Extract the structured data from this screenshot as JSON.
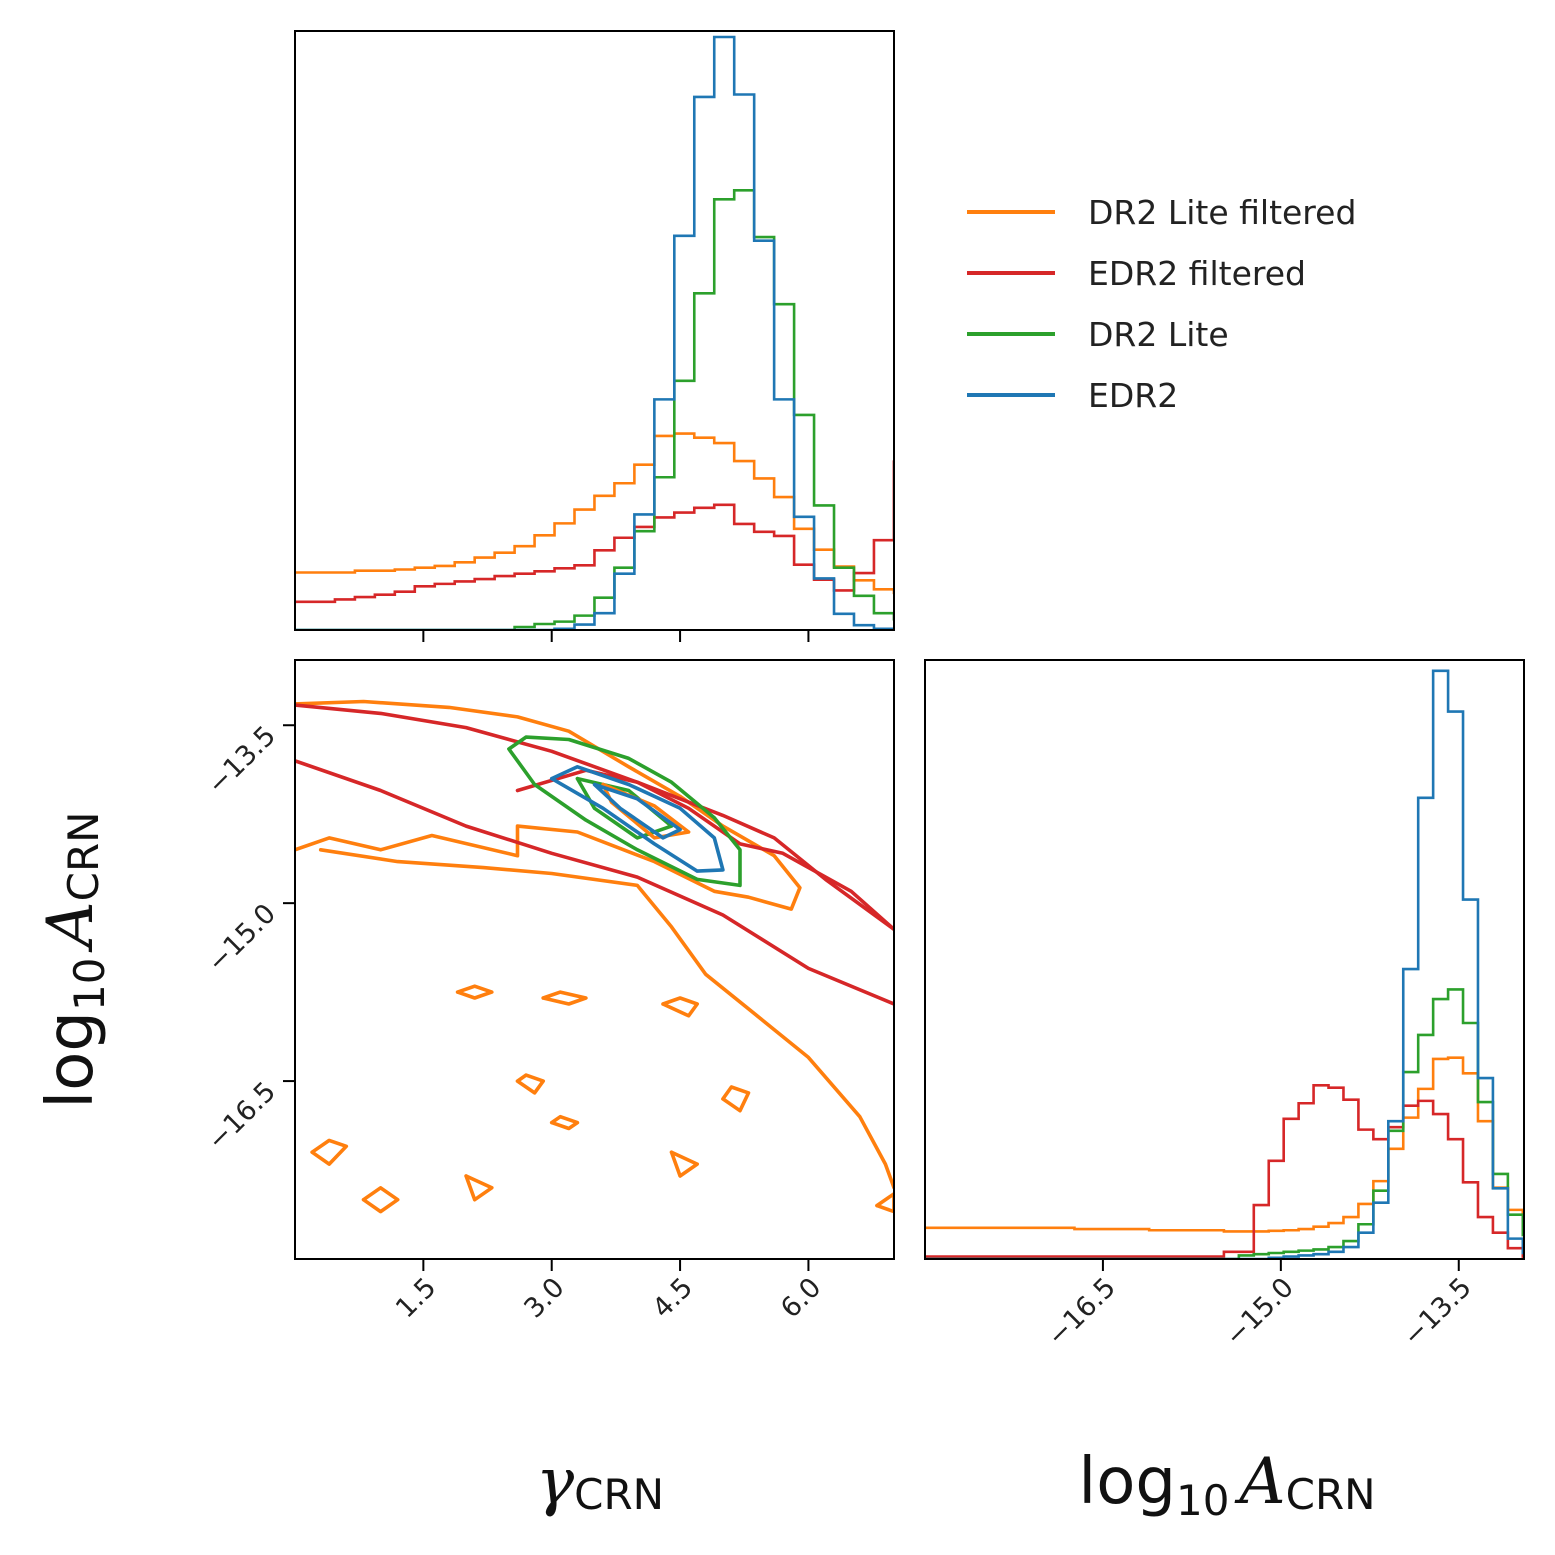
{
  "chart_data": {
    "type": "corner",
    "series": [
      {
        "name": "DR2 Lite filtered",
        "color": "#ff7f0e"
      },
      {
        "name": "EDR2 filtered",
        "color": "#d62728"
      },
      {
        "name": "DR2 Lite",
        "color": "#2ca02c"
      },
      {
        "name": "EDR2",
        "color": "#1f77b4"
      }
    ],
    "legend_position": "top-right",
    "grid": false,
    "gamma_axis": {
      "label_main": "γ",
      "label_sub": "CRN",
      "range": [
        0,
        7
      ],
      "ticks": [
        1.5,
        3.0,
        4.5,
        6.0
      ],
      "tick_labels": [
        "1.5",
        "3.0",
        "4.5",
        "6.0"
      ]
    },
    "logA_axis": {
      "label_main": "log",
      "label_base": "10",
      "label_var": "A",
      "label_sub": "CRN",
      "range": [
        -18.0,
        -12.95
      ],
      "ticks": [
        -16.5,
        -15.0,
        -13.5
      ],
      "tick_labels": [
        "−16.5",
        "−15.0",
        "−13.5"
      ]
    },
    "hist_gamma": {
      "bin_edges_start": 0.0,
      "bin_width": 0.2333,
      "heights": {
        "DR2 Lite filtered": [
          0.096,
          0.096,
          0.096,
          0.099,
          0.099,
          0.101,
          0.104,
          0.107,
          0.113,
          0.121,
          0.129,
          0.14,
          0.158,
          0.178,
          0.201,
          0.224,
          0.245,
          0.276,
          0.324,
          0.328,
          0.321,
          0.312,
          0.282,
          0.253,
          0.222,
          0.169,
          0.134,
          0.106,
          0.083,
          0.068,
          0.062,
          0.058,
          0.055,
          0.05,
          0.046,
          0.043,
          0.037,
          0.035,
          0.032,
          0.03
        ],
        "EDR2 filtered": [
          0.047,
          0.047,
          0.051,
          0.055,
          0.059,
          0.064,
          0.073,
          0.077,
          0.081,
          0.085,
          0.09,
          0.094,
          0.098,
          0.103,
          0.108,
          0.133,
          0.154,
          0.172,
          0.188,
          0.196,
          0.204,
          0.209,
          0.177,
          0.164,
          0.157,
          0.109,
          0.084,
          0.066,
          0.095,
          0.15,
          0.281,
          0.336,
          0.353,
          0.326,
          0.295,
          0.251,
          0.211,
          0.169,
          0.125,
          0.125
        ],
        "DR2 Lite": [
          0.0,
          0.0,
          0.0,
          0.0,
          0.0,
          0.0,
          0.0,
          0.0,
          0.0,
          0.0,
          0.0,
          0.005,
          0.01,
          0.014,
          0.024,
          0.054,
          0.104,
          0.165,
          0.255,
          0.416,
          0.562,
          0.719,
          0.734,
          0.656,
          0.544,
          0.359,
          0.208,
          0.104,
          0.057,
          0.028,
          0.018,
          0.01,
          0.005,
          0.0,
          0.0,
          0.0,
          0.0,
          0.0,
          0.0,
          0.0
        ],
        "EDR2": [
          0.0,
          0.0,
          0.0,
          0.0,
          0.0,
          0.0,
          0.0,
          0.0,
          0.0,
          0.0,
          0.0,
          0.0,
          0.0,
          0.002,
          0.009,
          0.028,
          0.094,
          0.193,
          0.385,
          0.658,
          0.89,
          0.99,
          0.894,
          0.65,
          0.385,
          0.189,
          0.086,
          0.027,
          0.008,
          0.002,
          0.0,
          0.0,
          0.0,
          0.0,
          0.0,
          0.0,
          0.0,
          0.0,
          0.0,
          0.0
        ]
      }
    },
    "hist_logA": {
      "bin_edges_start": -18.0,
      "bin_width": 0.126,
      "heights": {
        "DR2 Lite filtered": [
          0.052,
          0.052,
          0.052,
          0.052,
          0.052,
          0.052,
          0.052,
          0.052,
          0.052,
          0.052,
          0.05,
          0.05,
          0.05,
          0.05,
          0.05,
          0.048,
          0.048,
          0.048,
          0.048,
          0.048,
          0.046,
          0.046,
          0.046,
          0.047,
          0.048,
          0.05,
          0.054,
          0.06,
          0.07,
          0.092,
          0.13,
          0.184,
          0.236,
          0.284,
          0.334,
          0.336,
          0.31,
          0.23,
          0.119,
          0.082,
          0.05,
          0.026,
          0.004,
          0.002
        ],
        "EDR2 filtered": [
          0.004,
          0.004,
          0.004,
          0.004,
          0.004,
          0.004,
          0.004,
          0.004,
          0.004,
          0.004,
          0.004,
          0.004,
          0.004,
          0.004,
          0.004,
          0.004,
          0.004,
          0.004,
          0.004,
          0.004,
          0.012,
          0.012,
          0.09,
          0.164,
          0.234,
          0.26,
          0.29,
          0.286,
          0.266,
          0.216,
          0.2,
          0.22,
          0.256,
          0.264,
          0.242,
          0.2,
          0.128,
          0.07,
          0.044,
          0.018,
          0.004,
          0.0,
          0.0,
          0.0
        ],
        "DR2 Lite": [
          0.0,
          0.0,
          0.0,
          0.0,
          0.0,
          0.0,
          0.0,
          0.0,
          0.0,
          0.0,
          0.0,
          0.0,
          0.0,
          0.0,
          0.0,
          0.0,
          0.0,
          0.0,
          0.0,
          0.0,
          0.0,
          0.006,
          0.008,
          0.01,
          0.012,
          0.014,
          0.016,
          0.02,
          0.03,
          0.058,
          0.114,
          0.214,
          0.312,
          0.374,
          0.434,
          0.45,
          0.394,
          0.262,
          0.142,
          0.074,
          0.04,
          0.01,
          0.0,
          0.0
        ],
        "EDR2": [
          0.0,
          0.0,
          0.0,
          0.0,
          0.0,
          0.0,
          0.0,
          0.0,
          0.0,
          0.0,
          0.0,
          0.0,
          0.0,
          0.0,
          0.0,
          0.0,
          0.0,
          0.0,
          0.0,
          0.0,
          0.0,
          0.0,
          0.0,
          0.002,
          0.004,
          0.006,
          0.008,
          0.012,
          0.02,
          0.044,
          0.094,
          0.23,
          0.484,
          0.77,
          0.982,
          0.914,
          0.6,
          0.302,
          0.118,
          0.034,
          0.01,
          0.004,
          0.0,
          0.0
        ]
      }
    },
    "contours": {
      "DR2 Lite filtered": [
        [
          [
            0.0,
            -13.32
          ],
          [
            0.8,
            -13.3
          ],
          [
            1.8,
            -13.35
          ],
          [
            2.6,
            -13.43
          ],
          [
            3.2,
            -13.55
          ],
          [
            3.9,
            -13.85
          ],
          [
            4.5,
            -14.1
          ],
          [
            5.0,
            -14.35
          ],
          [
            5.6,
            -14.6
          ],
          [
            5.9,
            -14.87
          ],
          [
            5.8,
            -15.05
          ],
          [
            5.3,
            -14.95
          ],
          [
            4.9,
            -14.9
          ],
          [
            4.2,
            -14.65
          ],
          [
            3.3,
            -14.4
          ],
          [
            2.6,
            -14.35
          ],
          [
            2.6,
            -14.6
          ],
          [
            1.6,
            -14.43
          ],
          [
            1.0,
            -14.55
          ],
          [
            0.4,
            -14.45
          ],
          [
            0.0,
            -14.55
          ]
        ],
        [
          [
            0.3,
            -14.55
          ],
          [
            1.2,
            -14.65
          ],
          [
            2.2,
            -14.7
          ],
          [
            3.0,
            -14.75
          ],
          [
            4.0,
            -14.85
          ],
          [
            4.4,
            -15.2
          ],
          [
            4.8,
            -15.6
          ],
          [
            5.4,
            -15.95
          ],
          [
            6.0,
            -16.3
          ],
          [
            6.6,
            -16.8
          ],
          [
            6.9,
            -17.2
          ],
          [
            7.0,
            -17.4
          ]
        ],
        [
          [
            0.2,
            -17.1
          ],
          [
            0.4,
            -17.2
          ],
          [
            0.6,
            -17.05
          ],
          [
            0.4,
            -17.0
          ],
          [
            0.2,
            -17.1
          ]
        ],
        [
          [
            0.8,
            -17.5
          ],
          [
            1.0,
            -17.6
          ],
          [
            1.2,
            -17.5
          ],
          [
            1.0,
            -17.4
          ],
          [
            0.8,
            -17.5
          ]
        ],
        [
          [
            2.0,
            -17.3
          ],
          [
            2.3,
            -17.4
          ],
          [
            2.1,
            -17.5
          ],
          [
            2.0,
            -17.3
          ]
        ],
        [
          [
            4.4,
            -17.1
          ],
          [
            4.7,
            -17.2
          ],
          [
            4.5,
            -17.3
          ],
          [
            4.4,
            -17.1
          ]
        ],
        [
          [
            6.8,
            -17.55
          ],
          [
            7.0,
            -17.6
          ],
          [
            7.0,
            -17.45
          ],
          [
            6.8,
            -17.55
          ]
        ],
        [
          [
            1.9,
            -15.75
          ],
          [
            2.1,
            -15.8
          ],
          [
            2.3,
            -15.75
          ],
          [
            2.1,
            -15.7
          ],
          [
            1.9,
            -15.75
          ]
        ],
        [
          [
            2.9,
            -15.8
          ],
          [
            3.2,
            -15.85
          ],
          [
            3.4,
            -15.8
          ],
          [
            3.1,
            -15.75
          ],
          [
            2.9,
            -15.8
          ]
        ],
        [
          [
            4.3,
            -15.85
          ],
          [
            4.6,
            -15.95
          ],
          [
            4.7,
            -15.85
          ],
          [
            4.5,
            -15.8
          ],
          [
            4.3,
            -15.85
          ]
        ],
        [
          [
            2.6,
            -16.5
          ],
          [
            2.8,
            -16.6
          ],
          [
            2.9,
            -16.5
          ],
          [
            2.7,
            -16.45
          ],
          [
            2.6,
            -16.5
          ]
        ],
        [
          [
            3.0,
            -16.85
          ],
          [
            3.2,
            -16.9
          ],
          [
            3.3,
            -16.85
          ],
          [
            3.1,
            -16.8
          ],
          [
            3.0,
            -16.85
          ]
        ],
        [
          [
            5.0,
            -16.65
          ],
          [
            5.2,
            -16.75
          ],
          [
            5.3,
            -16.6
          ],
          [
            5.1,
            -16.55
          ],
          [
            5.0,
            -16.65
          ]
        ]
      ],
      "EDR2 filtered": [
        [
          [
            0.0,
            -13.33
          ],
          [
            1.0,
            -13.4
          ],
          [
            2.0,
            -13.52
          ],
          [
            3.0,
            -13.72
          ],
          [
            4.0,
            -13.98
          ],
          [
            5.0,
            -14.26
          ],
          [
            5.6,
            -14.45
          ],
          [
            6.2,
            -14.8
          ],
          [
            7.0,
            -15.22
          ]
        ],
        [
          [
            0.0,
            -13.8
          ],
          [
            1.0,
            -14.05
          ],
          [
            2.0,
            -14.35
          ],
          [
            3.0,
            -14.58
          ],
          [
            4.0,
            -14.78
          ],
          [
            5.0,
            -15.1
          ],
          [
            6.0,
            -15.55
          ],
          [
            7.0,
            -15.85
          ]
        ],
        [
          [
            2.6,
            -14.05
          ],
          [
            3.4,
            -13.88
          ],
          [
            4.0,
            -13.98
          ],
          [
            4.6,
            -14.2
          ],
          [
            5.2,
            -14.5
          ],
          [
            5.7,
            -14.58
          ],
          [
            6.5,
            -14.9
          ],
          [
            7.0,
            -15.22
          ]
        ]
      ],
      "DR2 Lite": [
        [
          [
            2.5,
            -13.7
          ],
          [
            2.7,
            -13.6
          ],
          [
            3.2,
            -13.62
          ],
          [
            3.9,
            -13.78
          ],
          [
            4.4,
            -13.98
          ],
          [
            4.9,
            -14.28
          ],
          [
            5.2,
            -14.55
          ],
          [
            5.2,
            -14.85
          ],
          [
            4.7,
            -14.8
          ],
          [
            4.0,
            -14.55
          ],
          [
            3.4,
            -14.3
          ],
          [
            2.8,
            -14.0
          ],
          [
            2.5,
            -13.7
          ]
        ],
        [
          [
            3.3,
            -13.95
          ],
          [
            3.9,
            -14.05
          ],
          [
            4.4,
            -14.35
          ],
          [
            4.0,
            -14.45
          ],
          [
            3.5,
            -14.2
          ],
          [
            3.3,
            -13.95
          ]
        ]
      ],
      "DR2 Lite filtered inner": [
        [
          [
            3.6,
            -14.0
          ],
          [
            4.2,
            -14.18
          ],
          [
            4.6,
            -14.4
          ],
          [
            4.2,
            -14.45
          ],
          [
            3.7,
            -14.15
          ],
          [
            3.6,
            -14.0
          ]
        ]
      ],
      "EDR2": [
        [
          [
            3.0,
            -13.95
          ],
          [
            3.3,
            -13.85
          ],
          [
            3.9,
            -14.0
          ],
          [
            4.5,
            -14.2
          ],
          [
            4.9,
            -14.45
          ],
          [
            5.0,
            -14.72
          ],
          [
            4.7,
            -14.73
          ],
          [
            4.2,
            -14.5
          ],
          [
            3.6,
            -14.2
          ],
          [
            3.0,
            -13.95
          ]
        ],
        [
          [
            3.5,
            -14.0
          ],
          [
            4.0,
            -14.12
          ],
          [
            4.5,
            -14.38
          ],
          [
            4.3,
            -14.45
          ],
          [
            3.8,
            -14.2
          ],
          [
            3.5,
            -14.0
          ]
        ]
      ]
    }
  }
}
